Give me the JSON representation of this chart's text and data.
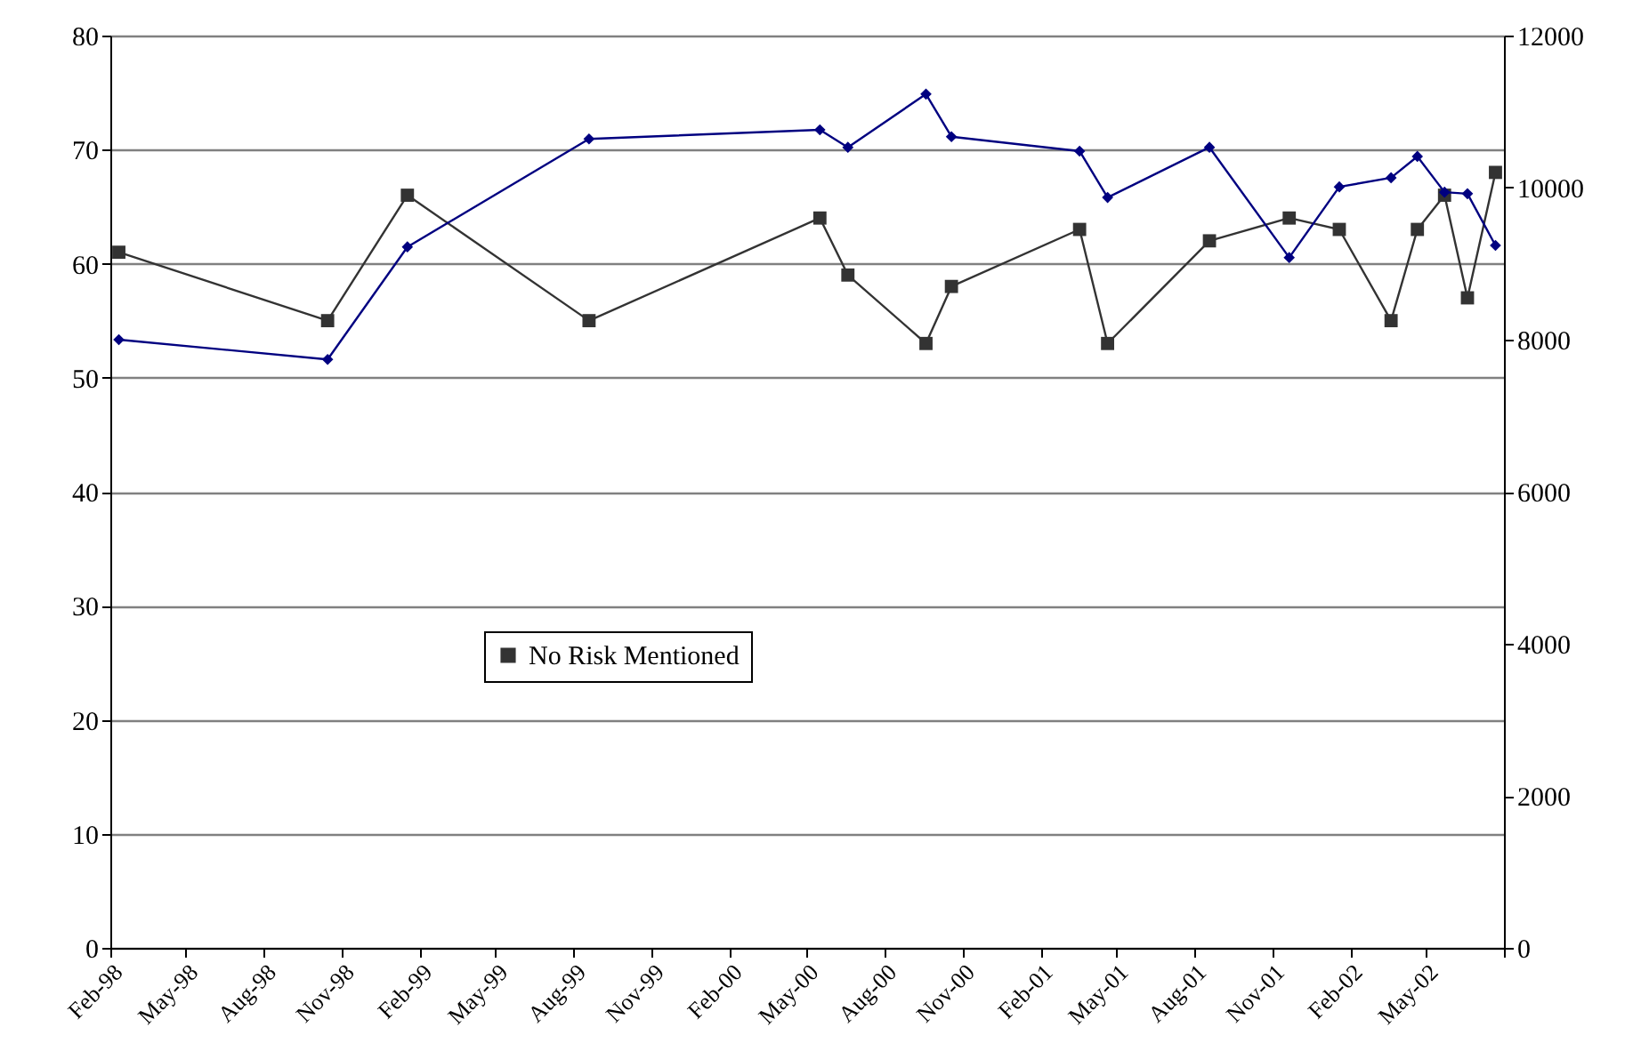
{
  "chart_data": {
    "type": "line",
    "xlim": [
      "1998-02",
      "2002-08"
    ],
    "xticks": [
      {
        "value": "1998-02",
        "label": "Feb-98"
      },
      {
        "value": "1998-05",
        "label": "May-98"
      },
      {
        "value": "1998-08",
        "label": "Aug-98"
      },
      {
        "value": "1998-11",
        "label": "Nov-98"
      },
      {
        "value": "1999-02",
        "label": "Feb-99"
      },
      {
        "value": "1999-05",
        "label": "May-99"
      },
      {
        "value": "1999-08",
        "label": "Aug-99"
      },
      {
        "value": "1999-11",
        "label": "Nov-99"
      },
      {
        "value": "2000-02",
        "label": "Feb-00"
      },
      {
        "value": "2000-05",
        "label": "May-00"
      },
      {
        "value": "2000-08",
        "label": "Aug-00"
      },
      {
        "value": "2000-11",
        "label": "Nov-00"
      },
      {
        "value": "2001-02",
        "label": "Feb-01"
      },
      {
        "value": "2001-05",
        "label": "May-01"
      },
      {
        "value": "2001-08",
        "label": "Aug-01"
      },
      {
        "value": "2001-11",
        "label": "Nov-01"
      },
      {
        "value": "2002-02",
        "label": "Feb-02"
      },
      {
        "value": "2002-05",
        "label": "May-02"
      },
      {
        "value": "2002-08",
        "label": null
      }
    ],
    "x": [
      "1998-02-11",
      "1998-10-15",
      "1999-01-17",
      "1999-08-19",
      "2000-05-17",
      "2000-06-19",
      "2000-09-19",
      "2000-10-19",
      "2001-03-19",
      "2001-04-21",
      "2001-08-19",
      "2001-11-21",
      "2002-01-19",
      "2002-03-21",
      "2002-04-21",
      "2002-05-23",
      "2002-06-19",
      "2002-07-22"
    ],
    "ylim": [
      0,
      80
    ],
    "yticks": [
      0,
      10,
      20,
      30,
      40,
      50,
      60,
      70,
      80
    ],
    "y2lim": [
      0,
      12000
    ],
    "y2ticks": [
      0,
      2000,
      4000,
      6000,
      8000,
      10000,
      12000
    ],
    "grid": "y",
    "legend": "center",
    "series": [
      {
        "name": "No Risk Mentioned",
        "color": "#333333",
        "marker": "square",
        "values": [
          61,
          55,
          66,
          55,
          64,
          59,
          53,
          58,
          63,
          53,
          62,
          64,
          63,
          55,
          63,
          66,
          57,
          68
        ]
      },
      {
        "color": "#000080",
        "marker": "diamond",
        "axis": "y2",
        "values": [
          8000,
          7740,
          9220,
          10640,
          10760,
          10530,
          11230,
          10670,
          10480,
          9870,
          10530,
          9080,
          10010,
          10130,
          10410,
          9940,
          9920,
          9240
        ]
      }
    ]
  }
}
